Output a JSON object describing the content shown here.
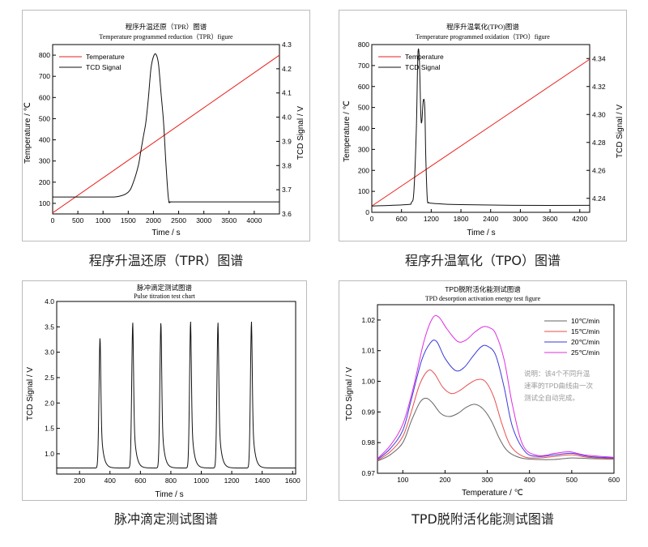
{
  "captions": {
    "tpr": "程序升温还原（TPR）图谱",
    "tpo": "程序升温氧化（TPO）图谱",
    "pulse": "脉冲滴定测试图谱",
    "tpd": "TPD脱附活化能测试图谱"
  },
  "colors": {
    "temperature": "#e8211b",
    "signal": "#111111",
    "c10": "#666666",
    "c15": "#e84d4d",
    "c20": "#3a3adb",
    "c25": "#e02ce0",
    "note": "#9a9a9a"
  },
  "chart_data": [
    {
      "id": "tpr",
      "type": "line",
      "title": "程序升温还原（TPR）图谱",
      "subtitle": "Temperature programmed reduction（TPR）figure",
      "xlabel": "Time / s",
      "ylabel": "Temperature / ℃",
      "y2label": "TCD Signal / V",
      "xlim": [
        0,
        4500
      ],
      "ylim": [
        50,
        850
      ],
      "y2lim": [
        3.6,
        4.3
      ],
      "xticks": [
        0,
        500,
        1000,
        1500,
        2000,
        2500,
        3000,
        3500,
        4000
      ],
      "yticks": [
        100,
        200,
        300,
        400,
        500,
        600,
        700,
        800
      ],
      "y2ticks": [
        3.6,
        3.7,
        3.8,
        3.9,
        4.0,
        4.1,
        4.2,
        4.3
      ],
      "legend": [
        "Temperature",
        "TCD Signal"
      ],
      "legend_position": "top-left",
      "series": [
        {
          "name": "Temperature",
          "axis": "left",
          "color": "#e8211b",
          "x": [
            0,
            4500
          ],
          "y": [
            55,
            800
          ]
        },
        {
          "name": "TCD Signal",
          "axis": "right",
          "color": "#111111",
          "x": [
            0,
            1000,
            1300,
            1500,
            1600,
            1700,
            1750,
            1800,
            1850,
            1900,
            1950,
            2000,
            2050,
            2100,
            2150,
            2200,
            2250,
            2300,
            2350,
            2500,
            4500
          ],
          "y": [
            3.67,
            3.67,
            3.672,
            3.69,
            3.73,
            3.8,
            3.86,
            3.92,
            3.98,
            4.08,
            4.2,
            4.25,
            4.26,
            4.22,
            4.1,
            3.98,
            3.8,
            3.66,
            3.65,
            3.65,
            3.65
          ]
        }
      ]
    },
    {
      "id": "tpo",
      "type": "line",
      "title": "程序升温氧化(TPO)图谱",
      "subtitle": "Temperature programmed oxidation（TPO）figure",
      "xlabel": "Time / s",
      "ylabel": "Temperature / ℃",
      "y2label": "TCD Signal / V",
      "xlim": [
        0,
        4400
      ],
      "ylim": [
        0,
        800
      ],
      "y2lim": [
        4.23,
        4.35
      ],
      "xticks": [
        0,
        600,
        1200,
        1800,
        2400,
        3000,
        3600,
        4200
      ],
      "yticks": [
        0,
        100,
        200,
        300,
        400,
        500,
        600,
        700,
        800
      ],
      "y2ticks": [
        4.24,
        4.26,
        4.28,
        4.3,
        4.32,
        4.34
      ],
      "legend": [
        "Temperature",
        "TCD Signal"
      ],
      "legend_position": "top-left",
      "series": [
        {
          "name": "Temperature",
          "axis": "left",
          "color": "#e8211b",
          "x": [
            0,
            4400
          ],
          "y": [
            30,
            730
          ]
        },
        {
          "name": "TCD Signal",
          "axis": "right",
          "color": "#111111",
          "x": [
            0,
            700,
            800,
            850,
            900,
            930,
            960,
            990,
            1010,
            1040,
            1070,
            1090,
            1120,
            1150,
            1200,
            1400,
            1800,
            3000,
            4400
          ],
          "y": [
            4.2345,
            4.2355,
            4.237,
            4.245,
            4.29,
            4.342,
            4.34,
            4.3,
            4.295,
            4.31,
            4.305,
            4.27,
            4.24,
            4.237,
            4.2365,
            4.236,
            4.2355,
            4.235,
            4.235
          ]
        }
      ]
    },
    {
      "id": "pulse",
      "type": "line",
      "title": "脉冲滴定测试图谱",
      "subtitle": "Pulse titration test chart",
      "xlabel": "Time / s",
      "ylabel": "TCD Signal / V",
      "xlim": [
        50,
        1620
      ],
      "ylim": [
        0.6,
        4.0
      ],
      "xticks": [
        200,
        400,
        600,
        800,
        1000,
        1200,
        1400,
        1600
      ],
      "yticks": [
        1.0,
        1.5,
        2.0,
        2.5,
        3.0,
        3.5,
        4.0
      ],
      "peaks": [
        {
          "time": 335,
          "height": 3.3
        },
        {
          "time": 550,
          "height": 3.58
        },
        {
          "time": 735,
          "height": 3.6
        },
        {
          "time": 930,
          "height": 3.6
        },
        {
          "time": 1110,
          "height": 3.58
        },
        {
          "time": 1330,
          "height": 3.6
        }
      ],
      "baseline": 0.72,
      "color": "#111111"
    },
    {
      "id": "tpd",
      "type": "line",
      "title": "TPD脱附活化能测试图谱",
      "subtitle": "TPD desorption activation energy test figure",
      "xlabel": "Temperature / ℃",
      "ylabel": "TCD Signal / V",
      "xlim": [
        40,
        600
      ],
      "ylim": [
        0.97,
        1.025
      ],
      "xticks": [
        100,
        200,
        300,
        400,
        500,
        600
      ],
      "yticks": [
        0.97,
        0.98,
        0.99,
        1.0,
        1.01,
        1.02
      ],
      "legend_position": "top-right",
      "note": [
        "说明：该4个不同升温",
        "速率的TPD曲线由一次",
        "测试全自动完成。"
      ],
      "series": [
        {
          "name": "10℃/min",
          "color": "#666666",
          "x": [
            40,
            70,
            100,
            120,
            140,
            155,
            170,
            190,
            210,
            230,
            250,
            270,
            290,
            310,
            330,
            350,
            380,
            420,
            460,
            500,
            540,
            600
          ],
          "y": [
            0.974,
            0.976,
            0.98,
            0.987,
            0.993,
            0.9945,
            0.993,
            0.9895,
            0.9885,
            0.9895,
            0.9915,
            0.9925,
            0.991,
            0.987,
            0.981,
            0.977,
            0.975,
            0.9745,
            0.9745,
            0.975,
            0.9748,
            0.9746
          ]
        },
        {
          "name": "15℃/min",
          "color": "#e84d4d",
          "x": [
            40,
            70,
            100,
            120,
            140,
            160,
            175,
            195,
            215,
            235,
            255,
            275,
            295,
            315,
            335,
            355,
            385,
            420,
            460,
            500,
            540,
            600
          ],
          "y": [
            0.9742,
            0.977,
            0.982,
            0.99,
            0.999,
            1.0035,
            1.0025,
            0.998,
            0.996,
            0.997,
            0.999,
            1.0005,
            1.0,
            0.995,
            0.986,
            0.979,
            0.9755,
            0.975,
            0.9755,
            0.976,
            0.9752,
            0.9748
          ]
        },
        {
          "name": "20℃/min",
          "color": "#3a3adb",
          "x": [
            40,
            70,
            100,
            120,
            145,
            165,
            180,
            200,
            225,
            245,
            265,
            285,
            300,
            320,
            340,
            360,
            390,
            420,
            460,
            500,
            540,
            600
          ],
          "y": [
            0.9745,
            0.978,
            0.984,
            0.994,
            1.007,
            1.0125,
            1.013,
            1.0075,
            1.0035,
            1.0045,
            1.008,
            1.0112,
            1.0115,
            1.0085,
            0.998,
            0.985,
            0.977,
            0.9755,
            0.976,
            0.9765,
            0.9755,
            0.975
          ]
        },
        {
          "name": "25℃/min",
          "color": "#e02ce0",
          "x": [
            40,
            70,
            100,
            125,
            150,
            170,
            185,
            205,
            230,
            250,
            270,
            290,
            305,
            320,
            340,
            360,
            385,
            420,
            460,
            495,
            530,
            600
          ],
          "y": [
            0.9748,
            0.979,
            0.986,
            0.998,
            1.013,
            1.0205,
            1.021,
            1.017,
            1.013,
            1.0135,
            1.016,
            1.0178,
            1.0175,
            1.0155,
            1.007,
            0.992,
            0.979,
            0.9758,
            0.9765,
            0.977,
            0.976,
            0.9752
          ]
        }
      ]
    }
  ]
}
